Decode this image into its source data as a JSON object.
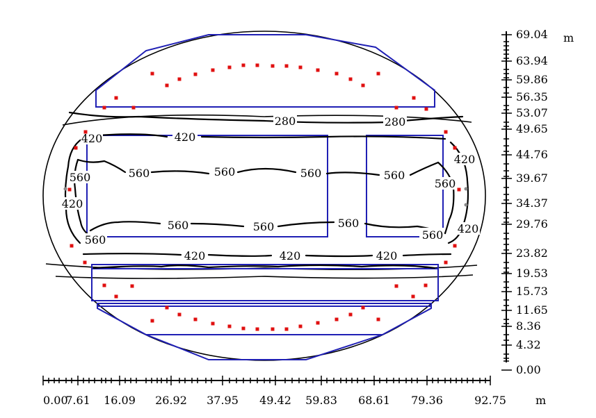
{
  "x_axis": {
    "labels": [
      "0.00",
      "7.61",
      "16.09",
      "26.92",
      "37.95",
      "49.42",
      "59.83",
      "68.61",
      "79.36",
      "92.75"
    ],
    "unit": "m"
  },
  "y_axis": {
    "labels": [
      "69.04",
      "63.94",
      "59.86",
      "56.35",
      "53.07",
      "49.65",
      "44.76",
      "39.67",
      "34.37",
      "29.76",
      "23.82",
      "19.53",
      "15.73",
      "11.65",
      "8.36",
      "4.32",
      "0.00"
    ],
    "unit": "m"
  },
  "contours": [
    {
      "id": "c280-left",
      "label": "280"
    },
    {
      "id": "c280-right",
      "label": "280"
    },
    {
      "id": "c420-top",
      "label": "420"
    },
    {
      "id": "c420-tl",
      "label": "420"
    },
    {
      "id": "c420-tr",
      "label": "420"
    },
    {
      "id": "c420-left",
      "label": "420"
    },
    {
      "id": "c420-right",
      "label": "420"
    },
    {
      "id": "c420-b1",
      "label": "420"
    },
    {
      "id": "c420-b2",
      "label": "420"
    },
    {
      "id": "c420-b3",
      "label": "420"
    },
    {
      "id": "c560-a",
      "label": "560"
    },
    {
      "id": "c560-b",
      "label": "560"
    },
    {
      "id": "c560-c",
      "label": "560"
    },
    {
      "id": "c560-d",
      "label": "560"
    },
    {
      "id": "c560-e",
      "label": "560"
    },
    {
      "id": "c560-f",
      "label": "560"
    },
    {
      "id": "c560-g",
      "label": "560"
    },
    {
      "id": "c560-h",
      "label": "560"
    },
    {
      "id": "c560-i",
      "label": "560"
    },
    {
      "id": "c560-j",
      "label": "560"
    }
  ],
  "colors": {
    "zone": "#1f1fb4",
    "point": "#e01010",
    "probe": "#888888",
    "line": "#000000"
  }
}
